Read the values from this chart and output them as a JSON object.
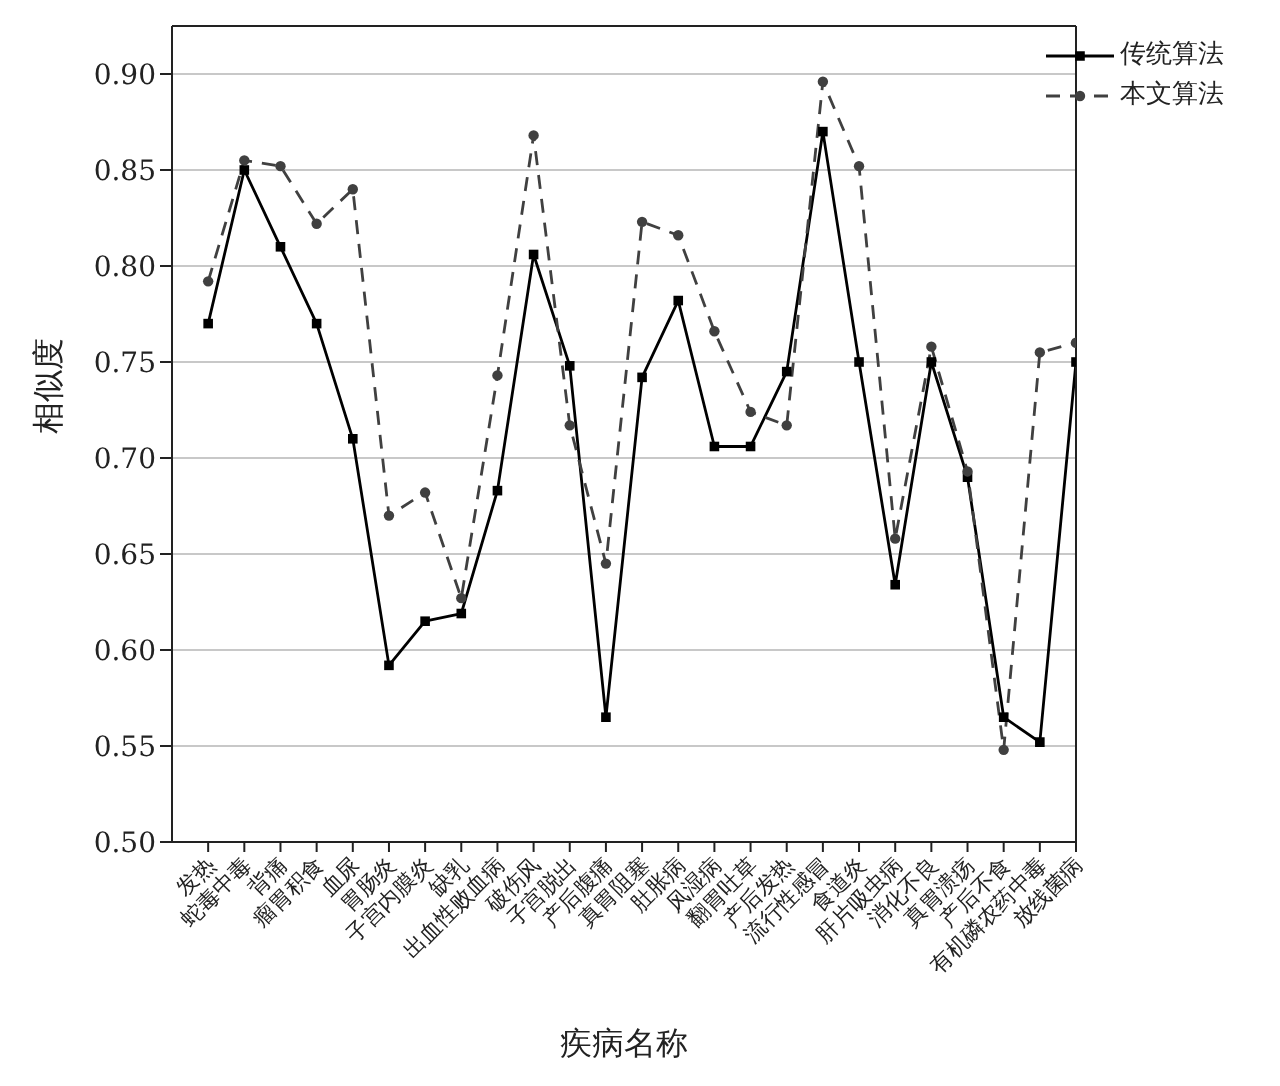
{
  "chart_data": {
    "type": "line",
    "xlabel": "疾病名称",
    "ylabel": "相似度",
    "categories": [
      "发热",
      "蛇毒中毒",
      "背痛",
      "瘤胃积食",
      "血尿",
      "胃肠炎",
      "子宫内膜炎",
      "缺乳",
      "出血性败血病",
      "破伤风",
      "子宫脱出",
      "产后腹痛",
      "真胃阻塞",
      "肚胀病",
      "风湿病",
      "翻胃吐草",
      "产后发热",
      "流行性感冒",
      "食道炎",
      "肝片吸虫病",
      "消化不良",
      "真胃溃疡",
      "产后不食",
      "有机磷农药中毒",
      "放线菌病"
    ],
    "series": [
      {
        "name": "传统算法",
        "color": "#000000",
        "line_style": "solid",
        "marker": "square",
        "values": [
          0.77,
          0.85,
          0.81,
          0.77,
          0.71,
          0.592,
          0.615,
          0.619,
          0.683,
          0.806,
          0.748,
          0.565,
          0.742,
          0.782,
          0.706,
          0.706,
          0.745,
          0.87,
          0.75,
          0.634,
          0.75,
          0.69,
          0.565,
          0.552,
          0.75
        ]
      },
      {
        "name": "本文算法",
        "color": "#404040",
        "line_style": "dashed",
        "marker": "circle",
        "values": [
          0.792,
          0.855,
          0.852,
          0.822,
          0.84,
          0.67,
          0.682,
          0.627,
          0.743,
          0.868,
          0.717,
          0.645,
          0.823,
          0.816,
          0.766,
          0.724,
          0.717,
          0.896,
          0.852,
          0.658,
          0.758,
          0.693,
          0.548,
          0.755,
          0.76
        ]
      }
    ],
    "ylim": [
      0.5,
      0.925
    ],
    "yticks": [
      {
        "value": 0.5,
        "label": "0.50"
      },
      0.55,
      {
        "value": 0.6,
        "label": "0.60"
      },
      0.65,
      {
        "value": 0.7,
        "label": "0.70"
      },
      0.75,
      {
        "value": 0.8,
        "label": "0.80"
      },
      0.85,
      {
        "value": 0.9,
        "label": "0.90"
      }
    ],
    "grid": "y",
    "legend": "top right"
  }
}
